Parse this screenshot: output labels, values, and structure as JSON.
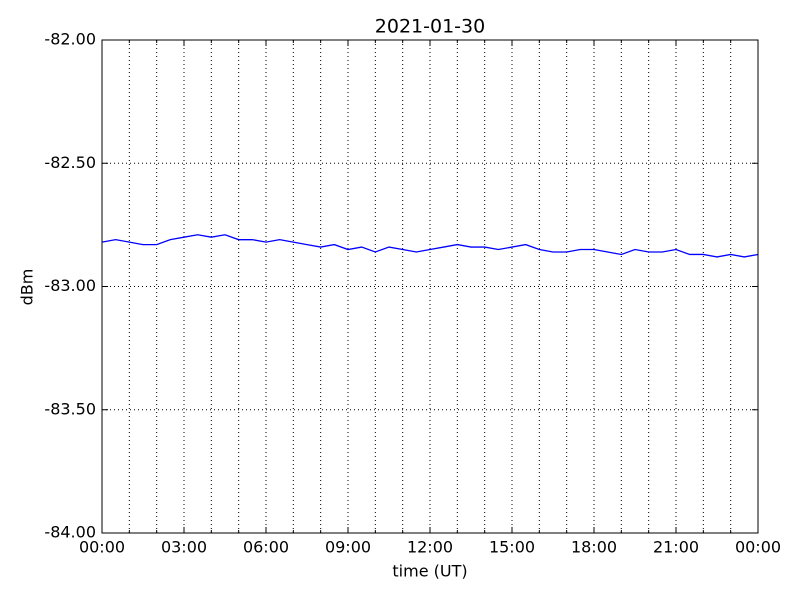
{
  "chart_data": {
    "type": "line",
    "title": "2021-01-30",
    "xlabel": "time (UT)",
    "ylabel": "dBm",
    "x": [
      0,
      0.5,
      1,
      1.5,
      2,
      2.5,
      3,
      3.5,
      4,
      4.5,
      5,
      5.5,
      6,
      6.5,
      7,
      7.5,
      8,
      8.5,
      9,
      9.5,
      10,
      10.5,
      11,
      11.5,
      12,
      12.5,
      13,
      13.5,
      14,
      14.5,
      15,
      15.5,
      16,
      16.5,
      17,
      17.5,
      18,
      18.5,
      19,
      19.5,
      20,
      20.5,
      21,
      21.5,
      22,
      22.5,
      23,
      23.5,
      24
    ],
    "values": [
      -82.82,
      -82.81,
      -82.82,
      -82.83,
      -82.83,
      -82.81,
      -82.8,
      -82.79,
      -82.8,
      -82.79,
      -82.81,
      -82.81,
      -82.82,
      -82.81,
      -82.82,
      -82.83,
      -82.84,
      -82.83,
      -82.85,
      -82.84,
      -82.86,
      -82.84,
      -82.85,
      -82.86,
      -82.85,
      -82.84,
      -82.83,
      -82.84,
      -82.84,
      -82.85,
      -82.84,
      -82.83,
      -82.85,
      -82.86,
      -82.86,
      -82.85,
      -82.85,
      -82.86,
      -82.87,
      -82.85,
      -82.86,
      -82.86,
      -82.85,
      -82.87,
      -82.87,
      -82.88,
      -82.87,
      -82.88,
      -82.87
    ],
    "color": "#0000ff",
    "xlim": [
      0,
      24
    ],
    "xticks": [
      {
        "value": 0,
        "label": "00:00"
      },
      {
        "value": 3,
        "label": "03:00"
      },
      {
        "value": 6,
        "label": "06:00"
      },
      {
        "value": 9,
        "label": "09:00"
      },
      {
        "value": 12,
        "label": "12:00"
      },
      {
        "value": 15,
        "label": "15:00"
      },
      {
        "value": 18,
        "label": "18:00"
      },
      {
        "value": 21,
        "label": "21:00"
      },
      {
        "value": 24,
        "label": "00:00"
      }
    ],
    "x_minor_ticks": [
      1,
      2,
      4,
      5,
      7,
      8,
      10,
      11,
      13,
      14,
      16,
      17,
      19,
      20,
      22,
      23
    ],
    "ylim": [
      -84,
      -82
    ],
    "yticks": [
      {
        "value": -84,
        "label": "-84.00"
      },
      {
        "value": -83.5,
        "label": "-83.50"
      },
      {
        "value": -83,
        "label": "-83.00"
      },
      {
        "value": -82.5,
        "label": "-82.50"
      },
      {
        "value": -82,
        "label": "-82.00"
      }
    ],
    "grid": true
  }
}
